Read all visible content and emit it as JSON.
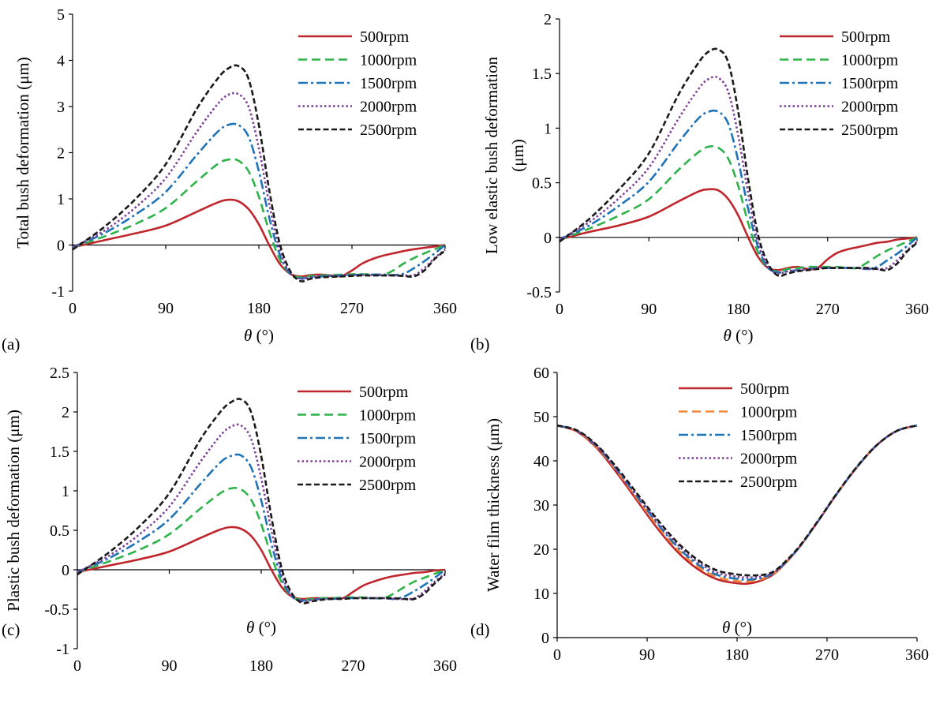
{
  "figure": {
    "legend_labels": [
      "500rpm",
      "1000rpm",
      "1500rpm",
      "2000rpm",
      "2500rpm"
    ],
    "series_colors": [
      "#c0272d",
      "#2eb34a",
      "#1f74b8",
      "#7d3f98",
      "#1a1a1a"
    ],
    "series_colors_d": [
      "#c0272d",
      "#f0873a",
      "#1f74b8",
      "#7d3f98",
      "#1a1a1a"
    ],
    "dash_styles": [
      "solid",
      "dash",
      "dash-dot",
      "dot",
      "short-dash"
    ]
  },
  "chart_data": [
    {
      "id": "a",
      "panel_label": "(a)",
      "type": "line",
      "ylabel": "Total bush deformation (μm)",
      "xlabel_symbol": "θ",
      "xlabel_unit": "(°)",
      "xlim": [
        0,
        360
      ],
      "ylim": [
        -1,
        5
      ],
      "xticks": [
        0,
        90,
        180,
        270,
        360
      ],
      "yticks": [
        -1,
        0,
        1,
        2,
        3,
        4,
        5
      ],
      "ytick_labels": [
        "-1",
        "0",
        "1",
        "2",
        "3",
        "4",
        "5"
      ],
      "x": [
        0,
        30,
        60,
        90,
        120,
        140,
        150,
        160,
        170,
        180,
        190,
        200,
        210,
        220,
        230,
        240,
        250,
        260,
        270,
        280,
        290,
        300,
        310,
        320,
        330,
        340,
        350,
        360
      ],
      "series": [
        {
          "name": "500rpm",
          "values": [
            -0.05,
            0.1,
            0.25,
            0.42,
            0.72,
            0.92,
            0.98,
            0.95,
            0.78,
            0.45,
            0.0,
            -0.4,
            -0.62,
            -0.68,
            -0.65,
            -0.64,
            -0.66,
            -0.67,
            -0.55,
            -0.4,
            -0.3,
            -0.23,
            -0.18,
            -0.13,
            -0.09,
            -0.06,
            -0.03,
            0.0
          ]
        },
        {
          "name": "1000rpm",
          "values": [
            -0.05,
            0.18,
            0.45,
            0.8,
            1.38,
            1.75,
            1.85,
            1.83,
            1.6,
            1.05,
            0.3,
            -0.3,
            -0.62,
            -0.7,
            -0.67,
            -0.66,
            -0.65,
            -0.64,
            -0.63,
            -0.63,
            -0.64,
            -0.65,
            -0.55,
            -0.4,
            -0.28,
            -0.18,
            -0.09,
            0.0
          ]
        },
        {
          "name": "1500rpm",
          "values": [
            -0.05,
            0.25,
            0.65,
            1.15,
            1.95,
            2.45,
            2.6,
            2.6,
            2.35,
            1.6,
            0.6,
            -0.2,
            -0.62,
            -0.72,
            -0.7,
            -0.68,
            -0.67,
            -0.66,
            -0.65,
            -0.64,
            -0.64,
            -0.64,
            -0.65,
            -0.62,
            -0.5,
            -0.35,
            -0.18,
            0.0
          ]
        },
        {
          "name": "2000rpm",
          "values": [
            -0.05,
            0.3,
            0.8,
            1.45,
            2.45,
            3.05,
            3.25,
            3.27,
            3.0,
            2.1,
            0.9,
            -0.1,
            -0.6,
            -0.73,
            -0.7,
            -0.68,
            -0.67,
            -0.66,
            -0.65,
            -0.65,
            -0.65,
            -0.65,
            -0.66,
            -0.66,
            -0.65,
            -0.5,
            -0.28,
            -0.1
          ]
        },
        {
          "name": "2500rpm",
          "values": [
            -0.1,
            0.38,
            0.98,
            1.75,
            2.95,
            3.6,
            3.82,
            3.88,
            3.6,
            2.6,
            1.2,
            0.05,
            -0.55,
            -0.78,
            -0.73,
            -0.7,
            -0.69,
            -0.68,
            -0.67,
            -0.66,
            -0.66,
            -0.66,
            -0.66,
            -0.67,
            -0.68,
            -0.55,
            -0.3,
            -0.12
          ]
        }
      ]
    },
    {
      "id": "b",
      "panel_label": "(b)",
      "type": "line",
      "ylabel": "Low elastic bush deformation",
      "ylabel2": "(μm)",
      "xlabel_symbol": "θ",
      "xlabel_unit": "(°)",
      "xlim": [
        0,
        360
      ],
      "ylim": [
        -0.5,
        2
      ],
      "xticks": [
        0,
        90,
        180,
        270,
        360
      ],
      "yticks": [
        -0.5,
        0,
        0.5,
        1,
        1.5,
        2
      ],
      "ytick_labels": [
        "-0.5",
        "0",
        "0.5",
        "1",
        "1.5",
        "2"
      ],
      "x": [
        0,
        30,
        60,
        90,
        120,
        140,
        150,
        160,
        170,
        180,
        190,
        200,
        210,
        220,
        230,
        240,
        250,
        260,
        270,
        280,
        290,
        300,
        310,
        320,
        330,
        340,
        350,
        360
      ],
      "series": [
        {
          "name": "500rpm",
          "values": [
            -0.02,
            0.05,
            0.11,
            0.19,
            0.33,
            0.42,
            0.44,
            0.43,
            0.35,
            0.2,
            0.0,
            -0.18,
            -0.28,
            -0.3,
            -0.28,
            -0.27,
            -0.29,
            -0.28,
            -0.2,
            -0.14,
            -0.11,
            -0.09,
            -0.07,
            -0.05,
            -0.04,
            -0.02,
            -0.01,
            0.0
          ]
        },
        {
          "name": "1000rpm",
          "values": [
            -0.02,
            0.08,
            0.2,
            0.35,
            0.62,
            0.78,
            0.83,
            0.82,
            0.72,
            0.47,
            0.13,
            -0.14,
            -0.28,
            -0.31,
            -0.29,
            -0.28,
            -0.27,
            -0.27,
            -0.27,
            -0.27,
            -0.28,
            -0.28,
            -0.23,
            -0.17,
            -0.12,
            -0.08,
            -0.04,
            0.0
          ]
        },
        {
          "name": "1500rpm",
          "values": [
            -0.02,
            0.11,
            0.29,
            0.51,
            0.87,
            1.09,
            1.15,
            1.15,
            1.04,
            0.7,
            0.26,
            -0.09,
            -0.28,
            -0.32,
            -0.31,
            -0.3,
            -0.29,
            -0.28,
            -0.28,
            -0.28,
            -0.28,
            -0.28,
            -0.29,
            -0.27,
            -0.21,
            -0.15,
            -0.08,
            0.0
          ]
        },
        {
          "name": "2000rpm",
          "values": [
            -0.02,
            0.14,
            0.36,
            0.64,
            1.09,
            1.36,
            1.45,
            1.46,
            1.33,
            0.93,
            0.4,
            -0.05,
            -0.27,
            -0.33,
            -0.31,
            -0.3,
            -0.29,
            -0.28,
            -0.28,
            -0.28,
            -0.28,
            -0.28,
            -0.29,
            -0.29,
            -0.28,
            -0.21,
            -0.12,
            -0.04
          ]
        },
        {
          "name": "2500rpm",
          "values": [
            -0.04,
            0.17,
            0.44,
            0.77,
            1.31,
            1.6,
            1.7,
            1.72,
            1.6,
            1.15,
            0.53,
            0.02,
            -0.24,
            -0.35,
            -0.33,
            -0.31,
            -0.3,
            -0.29,
            -0.28,
            -0.28,
            -0.28,
            -0.28,
            -0.28,
            -0.29,
            -0.3,
            -0.24,
            -0.13,
            -0.05
          ]
        }
      ]
    },
    {
      "id": "c",
      "panel_label": "(c)",
      "type": "line",
      "ylabel": "Plastic bush deformation (μm)",
      "xlabel_symbol": "θ",
      "xlabel_unit": "(°)",
      "xlim": [
        0,
        360
      ],
      "ylim": [
        -1,
        2.5
      ],
      "xticks": [
        0,
        90,
        180,
        270,
        360
      ],
      "yticks": [
        -1,
        -0.5,
        0,
        0.5,
        1,
        1.5,
        2,
        2.5
      ],
      "ytick_labels": [
        "-1",
        "-0.5",
        "0",
        "0.5",
        "1",
        "1.5",
        "2",
        "2.5"
      ],
      "x": [
        0,
        30,
        60,
        90,
        120,
        140,
        150,
        160,
        170,
        180,
        190,
        200,
        210,
        220,
        230,
        240,
        250,
        260,
        270,
        280,
        290,
        300,
        310,
        320,
        330,
        340,
        350,
        360
      ],
      "series": [
        {
          "name": "500rpm",
          "values": [
            -0.03,
            0.05,
            0.13,
            0.23,
            0.4,
            0.51,
            0.54,
            0.52,
            0.43,
            0.25,
            0.0,
            -0.22,
            -0.34,
            -0.37,
            -0.36,
            -0.36,
            -0.36,
            -0.36,
            -0.28,
            -0.2,
            -0.15,
            -0.11,
            -0.08,
            -0.06,
            -0.04,
            -0.03,
            -0.01,
            0.0
          ]
        },
        {
          "name": "1000rpm",
          "values": [
            -0.03,
            0.1,
            0.25,
            0.45,
            0.77,
            0.97,
            1.03,
            1.02,
            0.89,
            0.58,
            0.17,
            -0.16,
            -0.34,
            -0.38,
            -0.37,
            -0.36,
            -0.36,
            -0.35,
            -0.35,
            -0.35,
            -0.36,
            -0.36,
            -0.3,
            -0.22,
            -0.15,
            -0.1,
            -0.05,
            0.0
          ]
        },
        {
          "name": "1500rpm",
          "values": [
            -0.03,
            0.14,
            0.36,
            0.64,
            1.08,
            1.36,
            1.44,
            1.45,
            1.3,
            0.88,
            0.33,
            -0.11,
            -0.34,
            -0.39,
            -0.38,
            -0.37,
            -0.37,
            -0.36,
            -0.36,
            -0.36,
            -0.36,
            -0.36,
            -0.37,
            -0.34,
            -0.27,
            -0.19,
            -0.1,
            0.0
          ]
        },
        {
          "name": "2000rpm",
          "values": [
            -0.03,
            0.17,
            0.44,
            0.8,
            1.36,
            1.7,
            1.81,
            1.83,
            1.66,
            1.16,
            0.5,
            -0.05,
            -0.33,
            -0.4,
            -0.38,
            -0.37,
            -0.37,
            -0.36,
            -0.36,
            -0.36,
            -0.36,
            -0.36,
            -0.37,
            -0.37,
            -0.36,
            -0.27,
            -0.15,
            -0.05
          ]
        },
        {
          "name": "2500rpm",
          "values": [
            -0.06,
            0.21,
            0.54,
            0.97,
            1.64,
            2.0,
            2.12,
            2.16,
            2.0,
            1.44,
            0.67,
            0.02,
            -0.3,
            -0.42,
            -0.4,
            -0.38,
            -0.37,
            -0.37,
            -0.36,
            -0.36,
            -0.36,
            -0.36,
            -0.36,
            -0.37,
            -0.37,
            -0.3,
            -0.17,
            -0.06
          ]
        }
      ]
    },
    {
      "id": "d",
      "panel_label": "(d)",
      "type": "line",
      "ylabel": "Water film thickness (μm)",
      "xlabel_symbol": "θ",
      "xlabel_unit": "(°)",
      "xlim": [
        0,
        360
      ],
      "ylim": [
        0,
        60
      ],
      "xticks": [
        0,
        90,
        180,
        270,
        360
      ],
      "yticks": [
        0,
        10,
        20,
        30,
        40,
        50,
        60
      ],
      "ytick_labels": [
        "0",
        "10",
        "20",
        "30",
        "40",
        "50",
        "60"
      ],
      "x": [
        0,
        20,
        40,
        60,
        80,
        100,
        120,
        140,
        160,
        180,
        190,
        200,
        210,
        220,
        240,
        260,
        280,
        300,
        320,
        340,
        360
      ],
      "series": [
        {
          "name": "500rpm",
          "values": [
            48.0,
            46.6,
            42.8,
            37.2,
            31.0,
            24.8,
            19.5,
            15.6,
            13.2,
            12.3,
            12.2,
            12.6,
            13.5,
            15.0,
            19.8,
            26.0,
            32.6,
            38.6,
            43.6,
            46.8,
            48.0
          ]
        },
        {
          "name": "1000rpm",
          "values": [
            48.0,
            46.7,
            43.0,
            37.6,
            31.5,
            25.4,
            20.1,
            16.2,
            13.7,
            12.8,
            12.7,
            13.0,
            13.7,
            15.1,
            19.8,
            26.0,
            32.6,
            38.6,
            43.6,
            46.8,
            48.0
          ]
        },
        {
          "name": "1500rpm",
          "values": [
            48.0,
            46.8,
            43.2,
            37.9,
            31.9,
            25.9,
            20.6,
            16.7,
            14.2,
            13.3,
            13.1,
            13.3,
            13.9,
            15.2,
            19.8,
            26.0,
            32.6,
            38.6,
            43.6,
            46.8,
            48.0
          ]
        },
        {
          "name": "2000rpm",
          "values": [
            48.0,
            46.8,
            43.3,
            38.1,
            32.2,
            26.3,
            21.1,
            17.2,
            14.7,
            13.8,
            13.6,
            13.7,
            14.1,
            15.3,
            19.9,
            26.0,
            32.6,
            38.6,
            43.6,
            46.8,
            48.0
          ]
        },
        {
          "name": "2500rpm",
          "values": [
            48.0,
            46.9,
            43.5,
            38.4,
            32.6,
            26.8,
            21.6,
            17.7,
            15.2,
            14.3,
            14.1,
            14.1,
            14.4,
            15.5,
            20.0,
            26.1,
            32.7,
            38.7,
            43.6,
            46.8,
            48.0
          ]
        }
      ]
    }
  ]
}
